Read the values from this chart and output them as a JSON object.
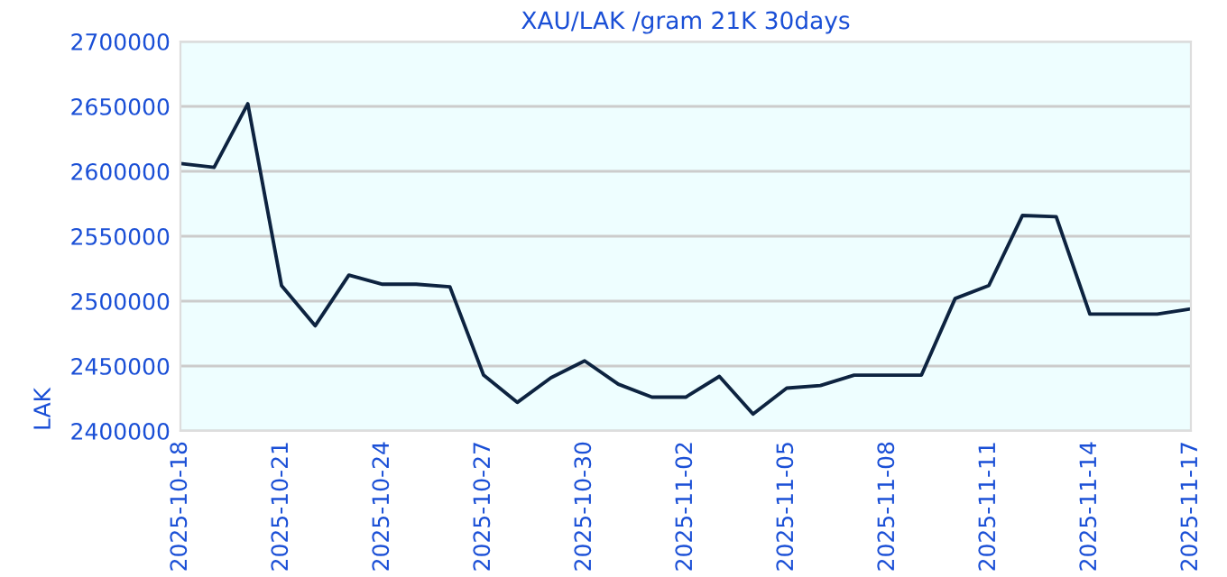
{
  "chart_data": {
    "type": "line",
    "title": "XAU/LAK /gram 21K 30days",
    "ylabel": "LAK",
    "x": [
      "2025-10-18",
      "2025-10-19",
      "2025-10-20",
      "2025-10-21",
      "2025-10-22",
      "2025-10-23",
      "2025-10-24",
      "2025-10-25",
      "2025-10-26",
      "2025-10-27",
      "2025-10-28",
      "2025-10-29",
      "2025-10-30",
      "2025-10-31",
      "2025-11-01",
      "2025-11-02",
      "2025-11-03",
      "2025-11-04",
      "2025-11-05",
      "2025-11-06",
      "2025-11-07",
      "2025-11-08",
      "2025-11-09",
      "2025-11-10",
      "2025-11-11",
      "2025-11-12",
      "2025-11-13",
      "2025-11-14",
      "2025-11-15",
      "2025-11-16",
      "2025-11-17"
    ],
    "series": [
      {
        "color": "#0d2340",
        "values": [
          2606000,
          2603000,
          2652000,
          2512000,
          2481000,
          2520000,
          2513000,
          2513000,
          2511000,
          2443000,
          2422000,
          2441000,
          2454000,
          2436000,
          2426000,
          2426000,
          2442000,
          2413000,
          2433000,
          2435000,
          2443000,
          2443000,
          2443000,
          2502000,
          2512000,
          2566000,
          2565000,
          2490000,
          2490000,
          2490000,
          2494000
        ]
      }
    ],
    "xlim": [
      "2025-10-18",
      "2025-11-17"
    ],
    "xticks": [
      "2025-10-18",
      "2025-10-21",
      "2025-10-24",
      "2025-10-27",
      "2025-10-30",
      "2025-11-02",
      "2025-11-05",
      "2025-11-08",
      "2025-11-11",
      "2025-11-14",
      "2025-11-17"
    ],
    "ylim": [
      2400000,
      2700000
    ],
    "yticks": [
      2400000,
      2450000,
      2500000,
      2550000,
      2600000,
      2650000,
      2700000
    ],
    "grid": "y",
    "legend": false,
    "marker": "none",
    "line_style": "solid"
  }
}
